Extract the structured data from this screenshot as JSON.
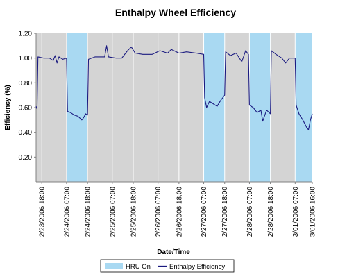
{
  "chart_data": {
    "type": "line",
    "title": "Enthalpy Wheel Efficiency",
    "xlabel": "Date/Time",
    "ylabel": "Efficiency (%)",
    "ylim": [
      0,
      1.2
    ],
    "yticks": [
      "0.20",
      "0.40",
      "0.60",
      "0.80",
      "1.00",
      "1.20"
    ],
    "ytick_values": [
      0.2,
      0.4,
      0.6,
      0.8,
      1.0,
      1.2
    ],
    "x_start": "2/23/2006 15:00",
    "x_end": "3/01/2006 16:00",
    "xticks": [
      {
        "label": "2/23/2006 18:00",
        "time": "2006-02-23T18:00"
      },
      {
        "label": "2/24/2006 07:00",
        "time": "2006-02-24T07:00"
      },
      {
        "label": "2/24/2006 18:00",
        "time": "2006-02-24T18:00"
      },
      {
        "label": "2/25/2006 07:00",
        "time": "2006-02-25T07:00"
      },
      {
        "label": "2/25/2006 18:00",
        "time": "2006-02-25T18:00"
      },
      {
        "label": "2/26/2006 07:00",
        "time": "2006-02-26T07:00"
      },
      {
        "label": "2/26/2006 18:00",
        "time": "2006-02-26T18:00"
      },
      {
        "label": "2/27/2006 07:00",
        "time": "2006-02-27T07:00"
      },
      {
        "label": "2/27/2006 18:00",
        "time": "2006-02-27T18:00"
      },
      {
        "label": "2/28/2006 07:00",
        "time": "2006-02-28T07:00"
      },
      {
        "label": "2/28/2006 18:00",
        "time": "2006-02-28T18:00"
      },
      {
        "label": "3/01/2006 07:00",
        "time": "2006-03-01T07:00"
      },
      {
        "label": "3/01/2006 16:00",
        "time": "2006-03-01T16:00"
      }
    ],
    "grid": "vertical",
    "legend_position": "bottom",
    "hru_on_periods": [
      {
        "start": "2006-02-24T07:00",
        "end": "2006-02-24T18:00"
      },
      {
        "start": "2006-02-27T07:00",
        "end": "2006-02-27T18:00"
      },
      {
        "start": "2006-02-28T07:00",
        "end": "2006-02-28T18:00"
      },
      {
        "start": "2006-03-01T07:00",
        "end": "2006-03-01T16:00"
      }
    ],
    "series": [
      {
        "name": "Enthalpy Efficiency",
        "color": "#1a1a80",
        "points": [
          [
            "2006-02-23T15:00",
            0.61
          ],
          [
            "2006-02-23T15:30",
            0.59
          ],
          [
            "2006-02-23T16:00",
            1.01
          ],
          [
            "2006-02-23T19:00",
            1.0
          ],
          [
            "2006-02-23T22:00",
            1.0
          ],
          [
            "2006-02-24T00:00",
            0.98
          ],
          [
            "2006-02-24T01:00",
            1.02
          ],
          [
            "2006-02-24T02:00",
            0.96
          ],
          [
            "2006-02-24T03:00",
            1.01
          ],
          [
            "2006-02-24T05:00",
            0.99
          ],
          [
            "2006-02-24T07:00",
            1.0
          ],
          [
            "2006-02-24T07:30",
            0.57
          ],
          [
            "2006-02-24T09:00",
            0.56
          ],
          [
            "2006-02-24T11:00",
            0.54
          ],
          [
            "2006-02-24T13:00",
            0.53
          ],
          [
            "2006-02-24T15:00",
            0.5
          ],
          [
            "2006-02-24T16:00",
            0.52
          ],
          [
            "2006-02-24T17:00",
            0.55
          ],
          [
            "2006-02-24T18:00",
            0.54
          ],
          [
            "2006-02-24T18:30",
            0.99
          ],
          [
            "2006-02-24T22:00",
            1.01
          ],
          [
            "2006-02-25T03:00",
            1.01
          ],
          [
            "2006-02-25T04:00",
            1.1
          ],
          [
            "2006-02-25T05:00",
            1.01
          ],
          [
            "2006-02-25T09:00",
            1.0
          ],
          [
            "2006-02-25T12:00",
            1.0
          ],
          [
            "2006-02-25T15:00",
            1.06
          ],
          [
            "2006-02-25T17:00",
            1.09
          ],
          [
            "2006-02-25T19:00",
            1.04
          ],
          [
            "2006-02-25T23:00",
            1.03
          ],
          [
            "2006-02-26T04:00",
            1.03
          ],
          [
            "2006-02-26T08:00",
            1.06
          ],
          [
            "2006-02-26T12:00",
            1.04
          ],
          [
            "2006-02-26T14:00",
            1.07
          ],
          [
            "2006-02-26T18:00",
            1.04
          ],
          [
            "2006-02-26T22:00",
            1.05
          ],
          [
            "2006-02-27T03:00",
            1.04
          ],
          [
            "2006-02-27T07:00",
            1.03
          ],
          [
            "2006-02-27T07:30",
            0.68
          ],
          [
            "2006-02-27T08:30",
            0.6
          ],
          [
            "2006-02-27T10:00",
            0.65
          ],
          [
            "2006-02-27T12:00",
            0.63
          ],
          [
            "2006-02-27T14:00",
            0.61
          ],
          [
            "2006-02-27T16:00",
            0.66
          ],
          [
            "2006-02-27T18:00",
            0.7
          ],
          [
            "2006-02-27T18:30",
            1.05
          ],
          [
            "2006-02-27T21:00",
            1.02
          ],
          [
            "2006-02-28T00:00",
            1.04
          ],
          [
            "2006-02-28T03:00",
            0.97
          ],
          [
            "2006-02-28T05:00",
            1.06
          ],
          [
            "2006-02-28T06:30",
            1.03
          ],
          [
            "2006-02-28T07:00",
            0.62
          ],
          [
            "2006-02-28T09:00",
            0.6
          ],
          [
            "2006-02-28T11:00",
            0.56
          ],
          [
            "2006-02-28T13:00",
            0.58
          ],
          [
            "2006-02-28T14:00",
            0.49
          ],
          [
            "2006-02-28T16:00",
            0.58
          ],
          [
            "2006-02-28T18:00",
            0.55
          ],
          [
            "2006-02-28T18:30",
            1.06
          ],
          [
            "2006-02-28T21:00",
            1.03
          ],
          [
            "2006-03-01T00:00",
            1.0
          ],
          [
            "2006-03-01T02:00",
            0.96
          ],
          [
            "2006-03-01T04:00",
            1.0
          ],
          [
            "2006-03-01T07:00",
            1.0
          ],
          [
            "2006-03-01T07:30",
            0.62
          ],
          [
            "2006-03-01T09:00",
            0.55
          ],
          [
            "2006-03-01T11:00",
            0.5
          ],
          [
            "2006-03-01T13:00",
            0.44
          ],
          [
            "2006-03-01T14:00",
            0.42
          ],
          [
            "2006-03-01T15:00",
            0.5
          ],
          [
            "2006-03-01T16:00",
            0.55
          ]
        ]
      }
    ],
    "legend": [
      {
        "label": "HRU On",
        "type": "area",
        "color": "#a9d9f2"
      },
      {
        "label": "Enthalpy Efficiency",
        "type": "line",
        "color": "#1a1a80"
      }
    ],
    "colors": {
      "plot_background": "#d4d4d4",
      "band": "#a9d9f2",
      "line": "#1a1a80",
      "grid": "#ffffff"
    }
  }
}
